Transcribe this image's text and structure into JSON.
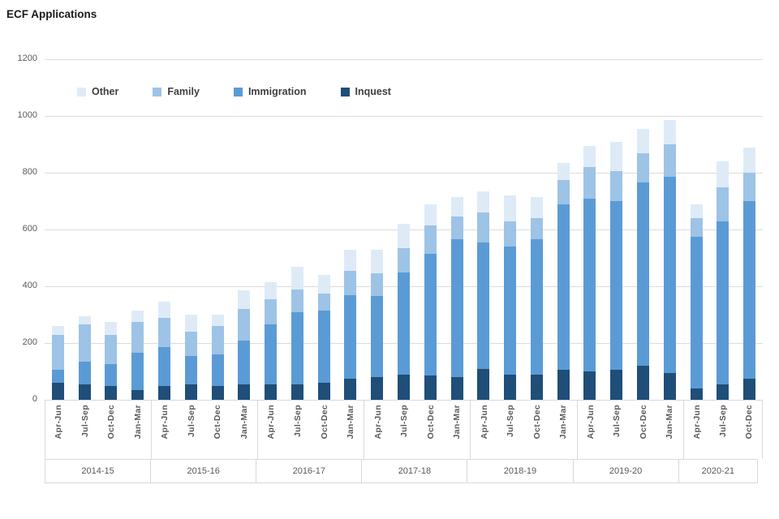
{
  "chart_data": {
    "type": "bar",
    "subtype": "stacked-vertical",
    "title": "ECF Applications",
    "xlabel": "",
    "ylabel": "",
    "ylim": [
      0,
      1200
    ],
    "yticks": [
      0,
      200,
      400,
      600,
      800,
      1000,
      1200
    ],
    "grid": "horizontal",
    "legend_position": "top-inside-horizontal",
    "legend_order": [
      "Other",
      "Family",
      "Immigration",
      "Inquest"
    ],
    "groups": [
      {
        "label": "2014-15",
        "quarters": [
          "Apr-Jun",
          "Jul-Sep",
          "Oct-Dec",
          "Jan-Mar"
        ]
      },
      {
        "label": "2015-16",
        "quarters": [
          "Apr-Jun",
          "Jul-Sep",
          "Oct-Dec",
          "Jan-Mar"
        ]
      },
      {
        "label": "2016-17",
        "quarters": [
          "Apr-Jun",
          "Jul-Sep",
          "Oct-Dec",
          "Jan-Mar"
        ]
      },
      {
        "label": "2017-18",
        "quarters": [
          "Apr-Jun",
          "Jul-Sep",
          "Oct-Dec",
          "Jan-Mar"
        ]
      },
      {
        "label": "2018-19",
        "quarters": [
          "Apr-Jun",
          "Jul-Sep",
          "Oct-Dec",
          "Jan-Mar"
        ]
      },
      {
        "label": "2019-20",
        "quarters": [
          "Apr-Jun",
          "Jul-Sep",
          "Oct-Dec",
          "Jan-Mar"
        ]
      },
      {
        "label": "2020-21",
        "quarters": [
          "Apr-Jun",
          "Jul-Sep",
          "Oct-Dec"
        ]
      }
    ],
    "series": [
      {
        "name": "Inquest",
        "color": "#1F4E79",
        "values": [
          60,
          55,
          50,
          35,
          50,
          55,
          50,
          55,
          55,
          55,
          60,
          75,
          80,
          90,
          85,
          80,
          110,
          90,
          90,
          105,
          100,
          105,
          120,
          95,
          40,
          55,
          75
        ]
      },
      {
        "name": "Immigration",
        "color": "#5B9BD5",
        "values": [
          45,
          80,
          75,
          130,
          135,
          100,
          110,
          155,
          210,
          255,
          255,
          295,
          285,
          360,
          430,
          485,
          445,
          450,
          475,
          585,
          610,
          595,
          645,
          690,
          535,
          575,
          625
        ]
      },
      {
        "name": "Family",
        "color": "#9DC3E6",
        "values": [
          125,
          130,
          105,
          110,
          105,
          85,
          100,
          110,
          90,
          80,
          60,
          85,
          80,
          85,
          100,
          80,
          105,
          90,
          75,
          85,
          110,
          105,
          105,
          115,
          65,
          120,
          100
        ]
      },
      {
        "name": "Other",
        "color": "#DEEBF7",
        "values": [
          30,
          30,
          45,
          40,
          55,
          60,
          40,
          65,
          60,
          80,
          65,
          75,
          85,
          85,
          75,
          70,
          75,
          90,
          75,
          60,
          75,
          105,
          85,
          85,
          50,
          90,
          90
        ]
      }
    ]
  }
}
